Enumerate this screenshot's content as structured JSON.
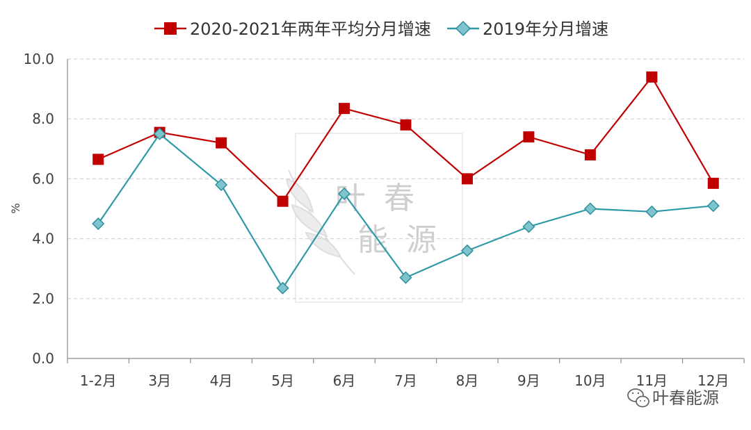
{
  "chart_data": {
    "type": "line",
    "categories": [
      "1-2月",
      "3月",
      "4月",
      "5月",
      "6月",
      "7月",
      "8月",
      "9月",
      "10月",
      "11月",
      "12月"
    ],
    "series": [
      {
        "name": "2020-2021年两年平均分月增速",
        "color": "#c00000",
        "marker": "square",
        "values": [
          6.65,
          7.55,
          7.2,
          5.25,
          8.35,
          7.8,
          6.0,
          7.4,
          6.8,
          9.4,
          5.85
        ]
      },
      {
        "name": "2019年分月增速",
        "color": "#2e9aa8",
        "marker": "diamond",
        "values": [
          4.5,
          7.5,
          5.8,
          2.35,
          5.5,
          2.7,
          3.6,
          4.4,
          5.0,
          4.9,
          5.1
        ]
      }
    ],
    "ylabel": "%",
    "ylim": [
      0,
      10
    ],
    "yticks": [
      "0.0",
      "2.0",
      "4.0",
      "6.0",
      "8.0",
      "10.0"
    ],
    "grid": true,
    "legend_position": "top"
  },
  "watermark": {
    "line1": "叶 春",
    "line2": "能 源"
  },
  "brand": {
    "label": "叶春能源",
    "icon": "wechat-icon"
  }
}
